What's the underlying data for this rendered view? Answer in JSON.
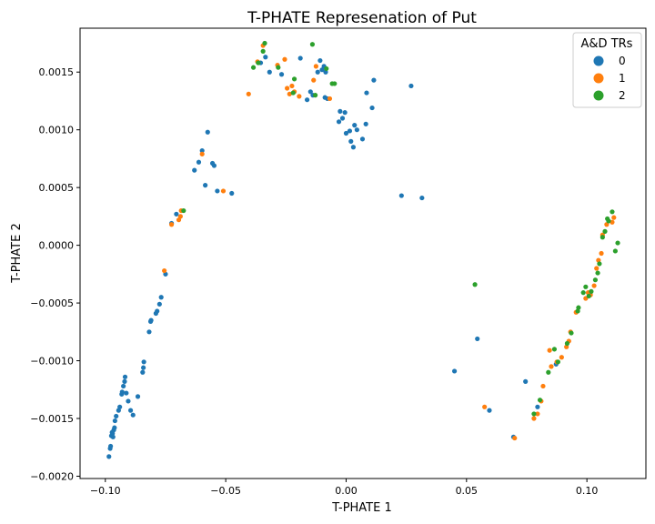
{
  "chart_data": {
    "type": "scatter",
    "title": "T-PHATE Represenation of Put",
    "xlabel": "T-PHATE 1",
    "ylabel": "T-PHATE 2",
    "xlim": [
      -0.1105,
      0.1245
    ],
    "ylim": [
      -0.00202,
      0.00188
    ],
    "xticks": [
      -0.1,
      -0.05,
      0.0,
      0.05,
      0.1
    ],
    "xtick_labels": [
      "−0.10",
      "−0.05",
      "0.00",
      "0.05",
      "0.10"
    ],
    "yticks": [
      -0.002,
      -0.0015,
      -0.001,
      -0.0005,
      0.0,
      0.0005,
      0.001,
      0.0015
    ],
    "ytick_labels": [
      "−0.0020",
      "−0.0015",
      "−0.0010",
      "−0.0005",
      "0.0000",
      "0.0005",
      "0.0010",
      "0.0015"
    ],
    "grid": false,
    "legend": {
      "title": "A&D TRs",
      "placement": "top-right"
    },
    "series": [
      {
        "name": "0",
        "color": "#1f77b4",
        "points": [
          [
            -0.0985,
            -0.00183
          ],
          [
            -0.098,
            -0.00176
          ],
          [
            -0.0978,
            -0.00174
          ],
          [
            -0.0975,
            -0.00165
          ],
          [
            -0.0972,
            -0.00162
          ],
          [
            -0.097,
            -0.00163
          ],
          [
            -0.0968,
            -0.00166
          ],
          [
            -0.0965,
            -0.0016
          ],
          [
            -0.0962,
            -0.00158
          ],
          [
            -0.096,
            -0.00152
          ],
          [
            -0.0955,
            -0.00148
          ],
          [
            -0.0945,
            -0.00143
          ],
          [
            -0.094,
            -0.0014
          ],
          [
            -0.0932,
            -0.00129
          ],
          [
            -0.093,
            -0.00127
          ],
          [
            -0.0925,
            -0.00122
          ],
          [
            -0.092,
            -0.00118
          ],
          [
            -0.0918,
            -0.00114
          ],
          [
            -0.0913,
            -0.00128
          ],
          [
            -0.0905,
            -0.00135
          ],
          [
            -0.0895,
            -0.00143
          ],
          [
            -0.0885,
            -0.00147
          ],
          [
            -0.0865,
            -0.00131
          ],
          [
            -0.0845,
            -0.0011
          ],
          [
            -0.0842,
            -0.00106
          ],
          [
            -0.084,
            -0.00101
          ],
          [
            -0.0818,
            -0.00075
          ],
          [
            -0.0812,
            -0.00066
          ],
          [
            -0.081,
            -0.00065
          ],
          [
            -0.079,
            -0.00059
          ],
          [
            -0.0785,
            -0.00057
          ],
          [
            -0.0775,
            -0.00051
          ],
          [
            -0.0768,
            -0.00045
          ],
          [
            -0.075,
            -0.00025
          ],
          [
            -0.0725,
            0.00019
          ],
          [
            -0.0705,
            0.00027
          ],
          [
            -0.063,
            0.00065
          ],
          [
            -0.0612,
            0.00072
          ],
          [
            -0.0598,
            0.00082
          ],
          [
            -0.0585,
            0.00052
          ],
          [
            -0.0575,
            0.00098
          ],
          [
            -0.0555,
            0.00071
          ],
          [
            -0.0548,
            0.00069
          ],
          [
            -0.0535,
            0.00047
          ],
          [
            -0.0475,
            0.00045
          ],
          [
            -0.0355,
            0.00158
          ],
          [
            -0.0335,
            0.00163
          ],
          [
            -0.0318,
            0.0015
          ],
          [
            -0.0268,
            0.00148
          ],
          [
            -0.019,
            0.00162
          ],
          [
            -0.0162,
            0.00126
          ],
          [
            -0.0148,
            0.00133
          ],
          [
            -0.0138,
            0.0013
          ],
          [
            -0.0118,
            0.0015
          ],
          [
            -0.0108,
            0.0016
          ],
          [
            -0.01,
            0.00152
          ],
          [
            -0.0092,
            0.00155
          ],
          [
            -0.0085,
            0.0015
          ],
          [
            -0.0088,
            0.00128
          ],
          [
            -0.0078,
            0.00127
          ],
          [
            -0.003,
            0.00107
          ],
          [
            -0.0025,
            0.00116
          ],
          [
            -0.0015,
            0.0011
          ],
          [
            -0.0005,
            0.00115
          ],
          [
            0.0,
            0.00097
          ],
          [
            0.0015,
            0.00099
          ],
          [
            0.002,
            0.0009
          ],
          [
            0.003,
            0.00085
          ],
          [
            0.0035,
            0.00104
          ],
          [
            0.0045,
            0.001
          ],
          [
            0.0068,
            0.00092
          ],
          [
            0.0082,
            0.00105
          ],
          [
            0.0085,
            0.00132
          ],
          [
            0.0108,
            0.00119
          ],
          [
            0.0115,
            0.00143
          ],
          [
            0.023,
            0.00043
          ],
          [
            0.027,
            0.00138
          ],
          [
            0.0315,
            0.00041
          ],
          [
            0.045,
            -0.00109
          ],
          [
            0.0545,
            -0.00081
          ],
          [
            0.0595,
            -0.00143
          ],
          [
            0.0695,
            -0.00166
          ],
          [
            0.0745,
            -0.00118
          ],
          [
            0.0795,
            -0.0014
          ],
          [
            0.0872,
            -0.00103
          ]
        ]
      },
      {
        "name": "1",
        "color": "#ff7f0e",
        "points": [
          [
            -0.0755,
            -0.00022
          ],
          [
            -0.0725,
            0.00018
          ],
          [
            -0.0695,
            0.00022
          ],
          [
            -0.0688,
            0.00025
          ],
          [
            -0.0685,
            0.0003
          ],
          [
            -0.0598,
            0.00079
          ],
          [
            -0.051,
            0.00047
          ],
          [
            -0.0405,
            0.00131
          ],
          [
            -0.0368,
            0.00159
          ],
          [
            -0.0345,
            0.00173
          ],
          [
            -0.0285,
            0.00156
          ],
          [
            -0.0255,
            0.00161
          ],
          [
            -0.0245,
            0.00136
          ],
          [
            -0.0235,
            0.00131
          ],
          [
            -0.0225,
            0.00138
          ],
          [
            -0.0215,
            0.00133
          ],
          [
            -0.0195,
            0.00129
          ],
          [
            -0.0135,
            0.00143
          ],
          [
            -0.0125,
            0.00155
          ],
          [
            -0.0068,
            0.00127
          ],
          [
            0.0575,
            -0.0014
          ],
          [
            0.07,
            -0.00167
          ],
          [
            0.078,
            -0.0015
          ],
          [
            0.0795,
            -0.00146
          ],
          [
            0.081,
            -0.00135
          ],
          [
            0.0818,
            -0.00122
          ],
          [
            0.0845,
            -0.00091
          ],
          [
            0.0852,
            -0.00105
          ],
          [
            0.0875,
            -0.00101
          ],
          [
            0.0895,
            -0.00097
          ],
          [
            0.0915,
            -0.00088
          ],
          [
            0.0925,
            -0.00083
          ],
          [
            0.0932,
            -0.00075
          ],
          [
            0.0955,
            -0.00058
          ],
          [
            0.0995,
            -0.00046
          ],
          [
            0.1005,
            -0.00041
          ],
          [
            0.1015,
            -0.00043
          ],
          [
            0.103,
            -0.00035
          ],
          [
            0.104,
            -0.0002
          ],
          [
            0.1048,
            -0.00013
          ],
          [
            0.106,
            -7e-05
          ],
          [
            0.1065,
            9e-05
          ],
          [
            0.1082,
            0.00018
          ],
          [
            0.1105,
            0.0002
          ],
          [
            0.1112,
            0.00024
          ]
        ]
      },
      {
        "name": "2",
        "color": "#2ca02c",
        "points": [
          [
            -0.0675,
            0.0003
          ],
          [
            -0.0385,
            0.00154
          ],
          [
            -0.0365,
            0.00158
          ],
          [
            -0.0345,
            0.00168
          ],
          [
            -0.0338,
            0.00175
          ],
          [
            -0.0282,
            0.00154
          ],
          [
            -0.022,
            0.00132
          ],
          [
            -0.0215,
            0.00144
          ],
          [
            -0.014,
            0.00174
          ],
          [
            -0.0128,
            0.0013
          ],
          [
            -0.0082,
            0.00153
          ],
          [
            -0.0058,
            0.0014
          ],
          [
            -0.0048,
            0.0014
          ],
          [
            0.0535,
            -0.00034
          ],
          [
            0.078,
            -0.00146
          ],
          [
            0.0805,
            -0.00134
          ],
          [
            0.084,
            -0.0011
          ],
          [
            0.0865,
            -0.0009
          ],
          [
            0.088,
            -0.00101
          ],
          [
            0.0918,
            -0.00085
          ],
          [
            0.0935,
            -0.00076
          ],
          [
            0.0962,
            -0.00057
          ],
          [
            0.0965,
            -0.00054
          ],
          [
            0.0985,
            -0.00041
          ],
          [
            0.0995,
            -0.00036
          ],
          [
            0.1008,
            -0.00044
          ],
          [
            0.1018,
            -0.0004
          ],
          [
            0.1035,
            -0.0003
          ],
          [
            0.1045,
            -0.00024
          ],
          [
            0.1052,
            -0.00016
          ],
          [
            0.1065,
            7e-05
          ],
          [
            0.1075,
            0.00012
          ],
          [
            0.1085,
            0.00023
          ],
          [
            0.109,
            0.00021
          ],
          [
            0.1105,
            0.00029
          ],
          [
            0.1118,
            -5e-05
          ],
          [
            0.1128,
            2e-05
          ]
        ]
      }
    ]
  }
}
